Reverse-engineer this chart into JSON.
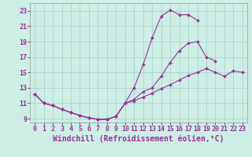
{
  "xlabel": "Windchill (Refroidissement éolien,°C)",
  "background_color": "#cceee4",
  "line_color": "#993399",
  "xlim": [
    -0.5,
    23.5
  ],
  "ylim": [
    8.5,
    24.0
  ],
  "yticks": [
    9,
    11,
    13,
    15,
    17,
    19,
    21,
    23
  ],
  "xticks": [
    0,
    1,
    2,
    3,
    4,
    5,
    6,
    7,
    8,
    9,
    10,
    11,
    12,
    13,
    14,
    15,
    16,
    17,
    18,
    19,
    20,
    21,
    22,
    23
  ],
  "line1_x": [
    0,
    1,
    2,
    3,
    4,
    5,
    6,
    7,
    8,
    9,
    10,
    11,
    12,
    13,
    14,
    15,
    16,
    17,
    18
  ],
  "line1_y": [
    12.2,
    11.0,
    10.7,
    10.2,
    9.8,
    9.4,
    9.1,
    8.9,
    8.9,
    9.3,
    11.0,
    13.0,
    16.0,
    19.5,
    22.3,
    23.1,
    22.5,
    22.5,
    21.8
  ],
  "line2_x": [
    0,
    1,
    2,
    3,
    4,
    5,
    6,
    7,
    8,
    9,
    10,
    11,
    12,
    13,
    14,
    15,
    16,
    17,
    18,
    19,
    20
  ],
  "line2_y": [
    12.2,
    11.0,
    10.7,
    10.2,
    9.8,
    9.4,
    9.1,
    8.9,
    8.9,
    9.3,
    11.0,
    11.5,
    12.5,
    13.0,
    14.5,
    16.3,
    17.8,
    18.8,
    19.0,
    17.0,
    16.5
  ],
  "line3_x": [
    0,
    1,
    2,
    3,
    4,
    5,
    6,
    7,
    8,
    9,
    10,
    11,
    12,
    13,
    14,
    15,
    16,
    17,
    18,
    19,
    20,
    21,
    22,
    23
  ],
  "line3_y": [
    12.2,
    11.0,
    10.7,
    10.2,
    9.8,
    9.4,
    9.1,
    8.9,
    8.9,
    9.3,
    11.0,
    11.3,
    11.8,
    12.3,
    12.9,
    13.4,
    14.0,
    14.6,
    15.0,
    15.5,
    15.0,
    14.5,
    15.2,
    15.0
  ],
  "grid_color": "#aacccc",
  "tick_fontsize": 6,
  "xlabel_fontsize": 7,
  "marker_size": 2.0,
  "line_width": 0.8
}
